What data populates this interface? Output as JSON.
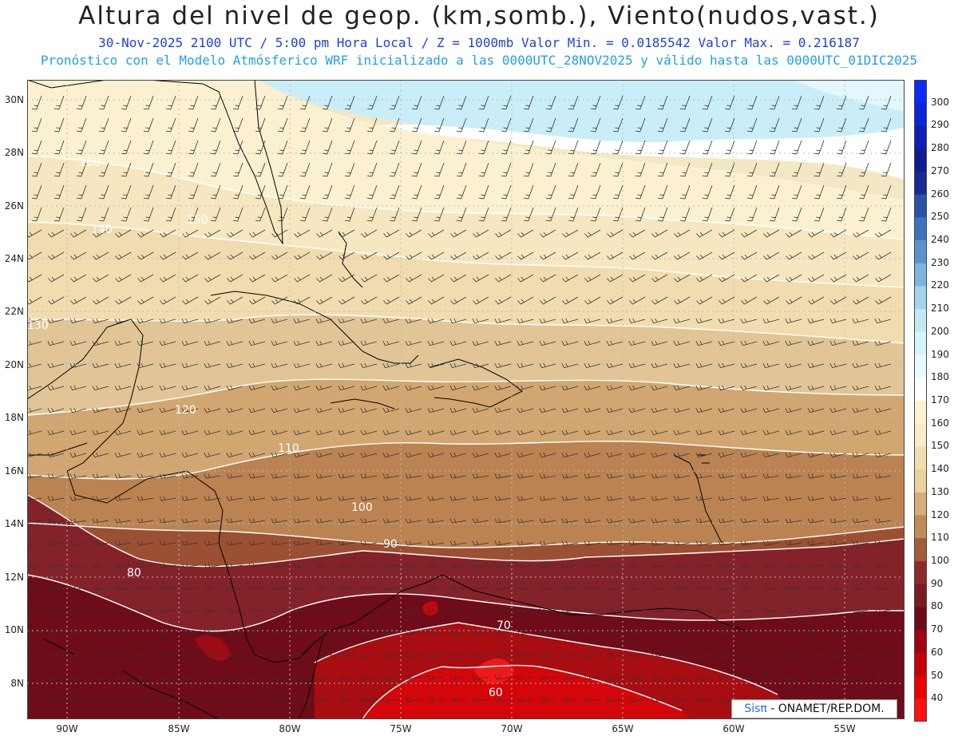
{
  "header": {
    "title": "Altura del nivel de geop. (km,somb.), Viento(nudos,vast.)",
    "subtitle1": "30-Nov-2025  2100 UTC / 5:00 pm Hora Local / Z = 1000mb  Valor Min. = 0.0185542  Valor Max. = 0.216187",
    "subtitle2": "Pronóstico con el Modelo Atmósferico WRF inicializado a las 0000UTC_28NOV2025 y válido hasta las  0000UTC_01DIC2025"
  },
  "map": {
    "lon_range": [
      -92,
      -53
    ],
    "lat_range": [
      6.8,
      30.8
    ],
    "lat_labels": [
      "30N",
      "28N",
      "26N",
      "24N",
      "22N",
      "20N",
      "18N",
      "16N",
      "14N",
      "12N",
      "10N",
      "8N"
    ],
    "lon_labels": [
      "90W",
      "85W",
      "80W",
      "75W",
      "70W",
      "65W",
      "60W",
      "55W"
    ],
    "contour_labels": [
      "160",
      "150",
      "140",
      "130",
      "120",
      "110",
      "100",
      "90",
      "80",
      "70",
      "60"
    ]
  },
  "colorbar": {
    "levels": [
      "300",
      "290",
      "280",
      "270",
      "260",
      "250",
      "240",
      "230",
      "220",
      "210",
      "200",
      "190",
      "180",
      "170",
      "160",
      "150",
      "140",
      "130",
      "120",
      "110",
      "100",
      "90",
      "80",
      "70",
      "60",
      "50",
      "40"
    ],
    "colors": [
      "#0a2cf5",
      "#0b26d8",
      "#0d1fb4",
      "#101a92",
      "#172a8f",
      "#2a53a8",
      "#3c73bd",
      "#5a93cd",
      "#7fb4dc",
      "#a3d4e9",
      "#c2e9f4",
      "#d7f4fa",
      "#e6fbfe",
      "#ffffff",
      "#fcf3d4",
      "#f8edc9",
      "#f1deae",
      "#ebd1a0",
      "#d6ae77",
      "#c08b56",
      "#a45b3a",
      "#8c2a2a",
      "#7a1a22",
      "#6c0a18",
      "#a00010",
      "#c80008",
      "#ea0000",
      "#ff1010"
    ]
  },
  "credit": {
    "brand": "Sisπ",
    "text": " - ONAMET/REP.DOM."
  }
}
